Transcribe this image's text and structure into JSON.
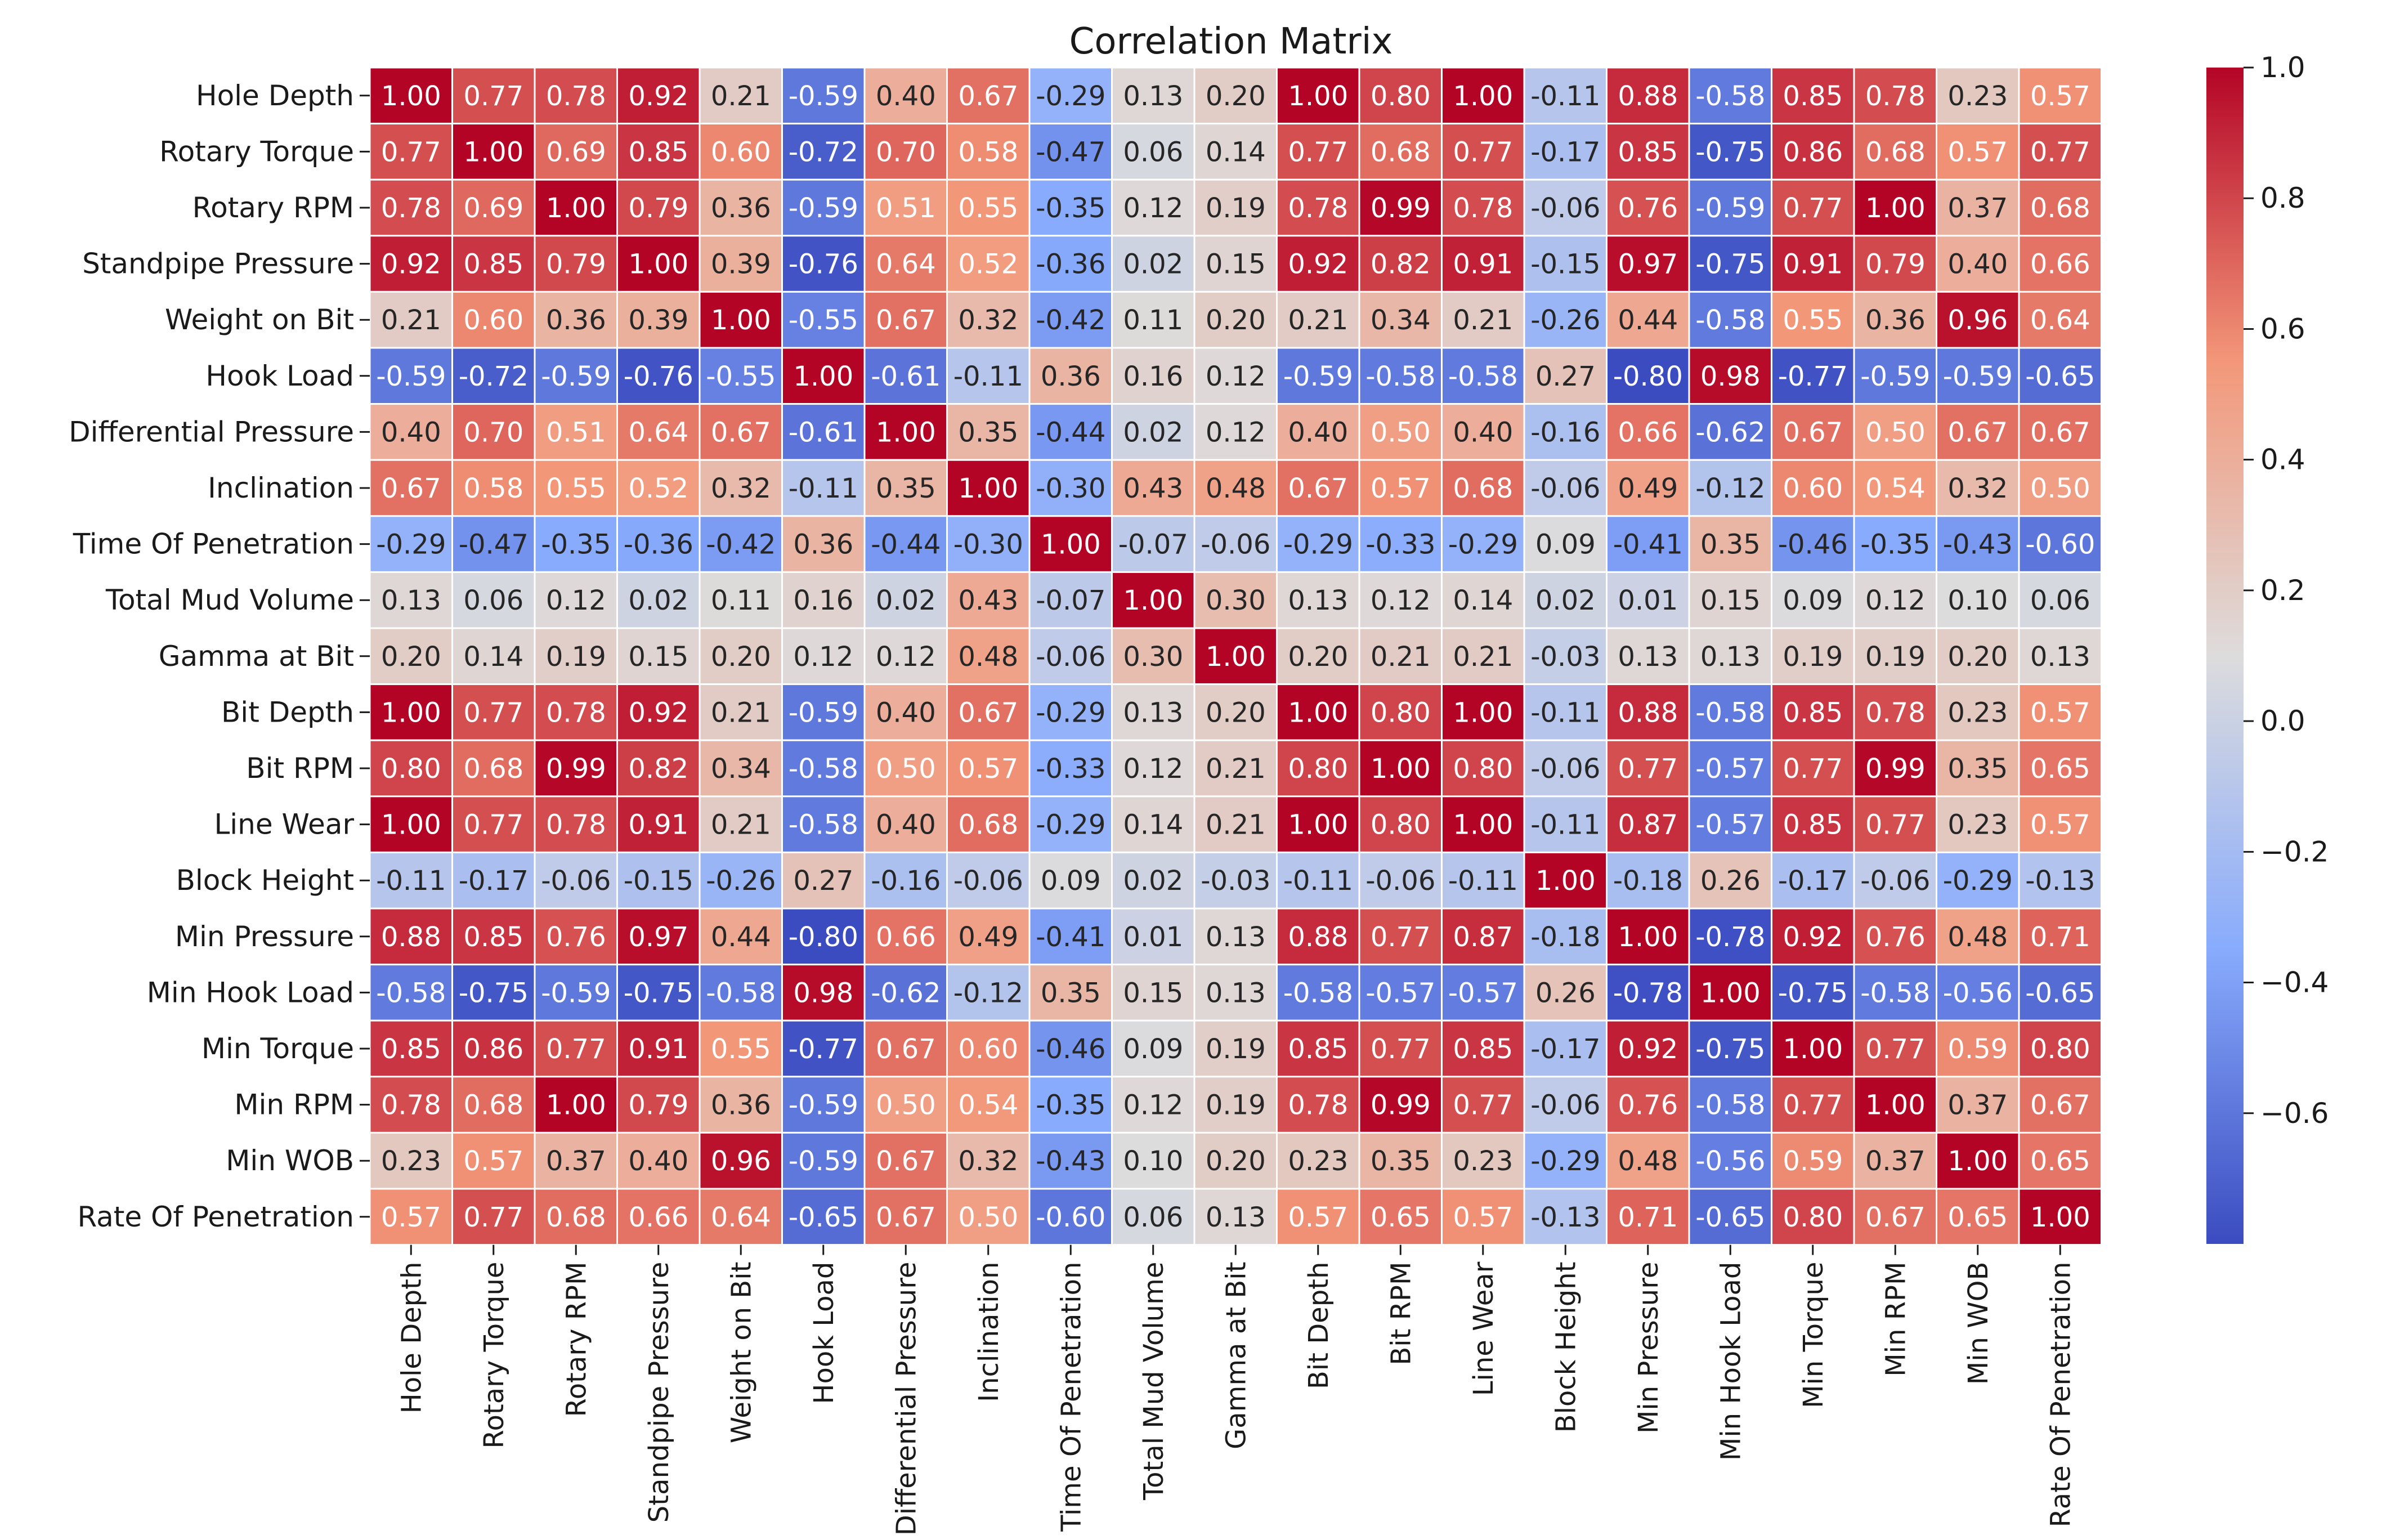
{
  "chart_data": {
    "type": "heatmap",
    "title": "Correlation Matrix",
    "xlabel": "",
    "ylabel": "",
    "labels": [
      "Hole Depth",
      "Rotary Torque",
      "Rotary RPM",
      "Standpipe Pressure",
      "Weight on Bit",
      "Hook Load",
      "Differential Pressure",
      "Inclination",
      "Time Of Penetration",
      "Total Mud Volume",
      "Gamma at Bit",
      "Bit Depth",
      "Bit RPM",
      "Line Wear",
      "Block Height",
      "Min Pressure",
      "Min Hook Load",
      "Min Torque",
      "Min RPM",
      "Min WOB",
      "Rate Of Penetration"
    ],
    "values": [
      [
        1.0,
        0.77,
        0.78,
        0.92,
        0.21,
        -0.59,
        0.4,
        0.67,
        -0.29,
        0.13,
        0.2,
        1.0,
        0.8,
        1.0,
        -0.11,
        0.88,
        -0.58,
        0.85,
        0.78,
        0.23,
        0.57
      ],
      [
        0.77,
        1.0,
        0.69,
        0.85,
        0.6,
        -0.72,
        0.7,
        0.58,
        -0.47,
        0.06,
        0.14,
        0.77,
        0.68,
        0.77,
        -0.17,
        0.85,
        -0.75,
        0.86,
        0.68,
        0.57,
        0.77
      ],
      [
        0.78,
        0.69,
        1.0,
        0.79,
        0.36,
        -0.59,
        0.51,
        0.55,
        -0.35,
        0.12,
        0.19,
        0.78,
        0.99,
        0.78,
        -0.06,
        0.76,
        -0.59,
        0.77,
        1.0,
        0.37,
        0.68
      ],
      [
        0.92,
        0.85,
        0.79,
        1.0,
        0.39,
        -0.76,
        0.64,
        0.52,
        -0.36,
        0.02,
        0.15,
        0.92,
        0.82,
        0.91,
        -0.15,
        0.97,
        -0.75,
        0.91,
        0.79,
        0.4,
        0.66
      ],
      [
        0.21,
        0.6,
        0.36,
        0.39,
        1.0,
        -0.55,
        0.67,
        0.32,
        -0.42,
        0.11,
        0.2,
        0.21,
        0.34,
        0.21,
        -0.26,
        0.44,
        -0.58,
        0.55,
        0.36,
        0.96,
        0.64
      ],
      [
        -0.59,
        -0.72,
        -0.59,
        -0.76,
        -0.55,
        1.0,
        -0.61,
        -0.11,
        0.36,
        0.16,
        0.12,
        -0.59,
        -0.58,
        -0.58,
        0.27,
        -0.8,
        0.98,
        -0.77,
        -0.59,
        -0.59,
        -0.65
      ],
      [
        0.4,
        0.7,
        0.51,
        0.64,
        0.67,
        -0.61,
        1.0,
        0.35,
        -0.44,
        0.02,
        0.12,
        0.4,
        0.5,
        0.4,
        -0.16,
        0.66,
        -0.62,
        0.67,
        0.5,
        0.67,
        0.67
      ],
      [
        0.67,
        0.58,
        0.55,
        0.52,
        0.32,
        -0.11,
        0.35,
        1.0,
        -0.3,
        0.43,
        0.48,
        0.67,
        0.57,
        0.68,
        -0.06,
        0.49,
        -0.12,
        0.6,
        0.54,
        0.32,
        0.5
      ],
      [
        -0.29,
        -0.47,
        -0.35,
        -0.36,
        -0.42,
        0.36,
        -0.44,
        -0.3,
        1.0,
        -0.07,
        -0.06,
        -0.29,
        -0.33,
        -0.29,
        0.09,
        -0.41,
        0.35,
        -0.46,
        -0.35,
        -0.43,
        -0.6
      ],
      [
        0.13,
        0.06,
        0.12,
        0.02,
        0.11,
        0.16,
        0.02,
        0.43,
        -0.07,
        1.0,
        0.3,
        0.13,
        0.12,
        0.14,
        0.02,
        0.01,
        0.15,
        0.09,
        0.12,
        0.1,
        0.06
      ],
      [
        0.2,
        0.14,
        0.19,
        0.15,
        0.2,
        0.12,
        0.12,
        0.48,
        -0.06,
        0.3,
        1.0,
        0.2,
        0.21,
        0.21,
        -0.03,
        0.13,
        0.13,
        0.19,
        0.19,
        0.2,
        0.13
      ],
      [
        1.0,
        0.77,
        0.78,
        0.92,
        0.21,
        -0.59,
        0.4,
        0.67,
        -0.29,
        0.13,
        0.2,
        1.0,
        0.8,
        1.0,
        -0.11,
        0.88,
        -0.58,
        0.85,
        0.78,
        0.23,
        0.57
      ],
      [
        0.8,
        0.68,
        0.99,
        0.82,
        0.34,
        -0.58,
        0.5,
        0.57,
        -0.33,
        0.12,
        0.21,
        0.8,
        1.0,
        0.8,
        -0.06,
        0.77,
        -0.57,
        0.77,
        0.99,
        0.35,
        0.65
      ],
      [
        1.0,
        0.77,
        0.78,
        0.91,
        0.21,
        -0.58,
        0.4,
        0.68,
        -0.29,
        0.14,
        0.21,
        1.0,
        0.8,
        1.0,
        -0.11,
        0.87,
        -0.57,
        0.85,
        0.77,
        0.23,
        0.57
      ],
      [
        -0.11,
        -0.17,
        -0.06,
        -0.15,
        -0.26,
        0.27,
        -0.16,
        -0.06,
        0.09,
        0.02,
        -0.03,
        -0.11,
        -0.06,
        -0.11,
        1.0,
        -0.18,
        0.26,
        -0.17,
        -0.06,
        -0.29,
        -0.13
      ],
      [
        0.88,
        0.85,
        0.76,
        0.97,
        0.44,
        -0.8,
        0.66,
        0.49,
        -0.41,
        0.01,
        0.13,
        0.88,
        0.77,
        0.87,
        -0.18,
        1.0,
        -0.78,
        0.92,
        0.76,
        0.48,
        0.71
      ],
      [
        -0.58,
        -0.75,
        -0.59,
        -0.75,
        -0.58,
        0.98,
        -0.62,
        -0.12,
        0.35,
        0.15,
        0.13,
        -0.58,
        -0.57,
        -0.57,
        0.26,
        -0.78,
        1.0,
        -0.75,
        -0.58,
        -0.56,
        -0.65
      ],
      [
        0.85,
        0.86,
        0.77,
        0.91,
        0.55,
        -0.77,
        0.67,
        0.6,
        -0.46,
        0.09,
        0.19,
        0.85,
        0.77,
        0.85,
        -0.17,
        0.92,
        -0.75,
        1.0,
        0.77,
        0.59,
        0.8
      ],
      [
        0.78,
        0.68,
        1.0,
        0.79,
        0.36,
        -0.59,
        0.5,
        0.54,
        -0.35,
        0.12,
        0.19,
        0.78,
        0.99,
        0.77,
        -0.06,
        0.76,
        -0.58,
        0.77,
        1.0,
        0.37,
        0.67
      ],
      [
        0.23,
        0.57,
        0.37,
        0.4,
        0.96,
        -0.59,
        0.67,
        0.32,
        -0.43,
        0.1,
        0.2,
        0.23,
        0.35,
        0.23,
        -0.29,
        0.48,
        -0.56,
        0.59,
        0.37,
        1.0,
        0.65
      ],
      [
        0.57,
        0.77,
        0.68,
        0.66,
        0.64,
        -0.65,
        0.67,
        0.5,
        -0.6,
        0.06,
        0.13,
        0.57,
        0.65,
        0.57,
        -0.13,
        0.71,
        -0.65,
        0.8,
        0.67,
        0.65,
        1.0
      ]
    ],
    "colorbar": {
      "range": [
        -0.8,
        1.0
      ],
      "ticks": [
        1.0,
        0.8,
        0.6,
        0.4,
        0.2,
        0.0,
        -0.2,
        -0.4,
        -0.6
      ],
      "tick_labels": [
        "1.0",
        "0.8",
        "0.6",
        "0.4",
        "0.2",
        "0.0",
        "−0.2",
        "−0.4",
        "−0.6"
      ]
    },
    "colormap": "coolwarm",
    "annotations": "two-decimal value printed in each cell"
  }
}
